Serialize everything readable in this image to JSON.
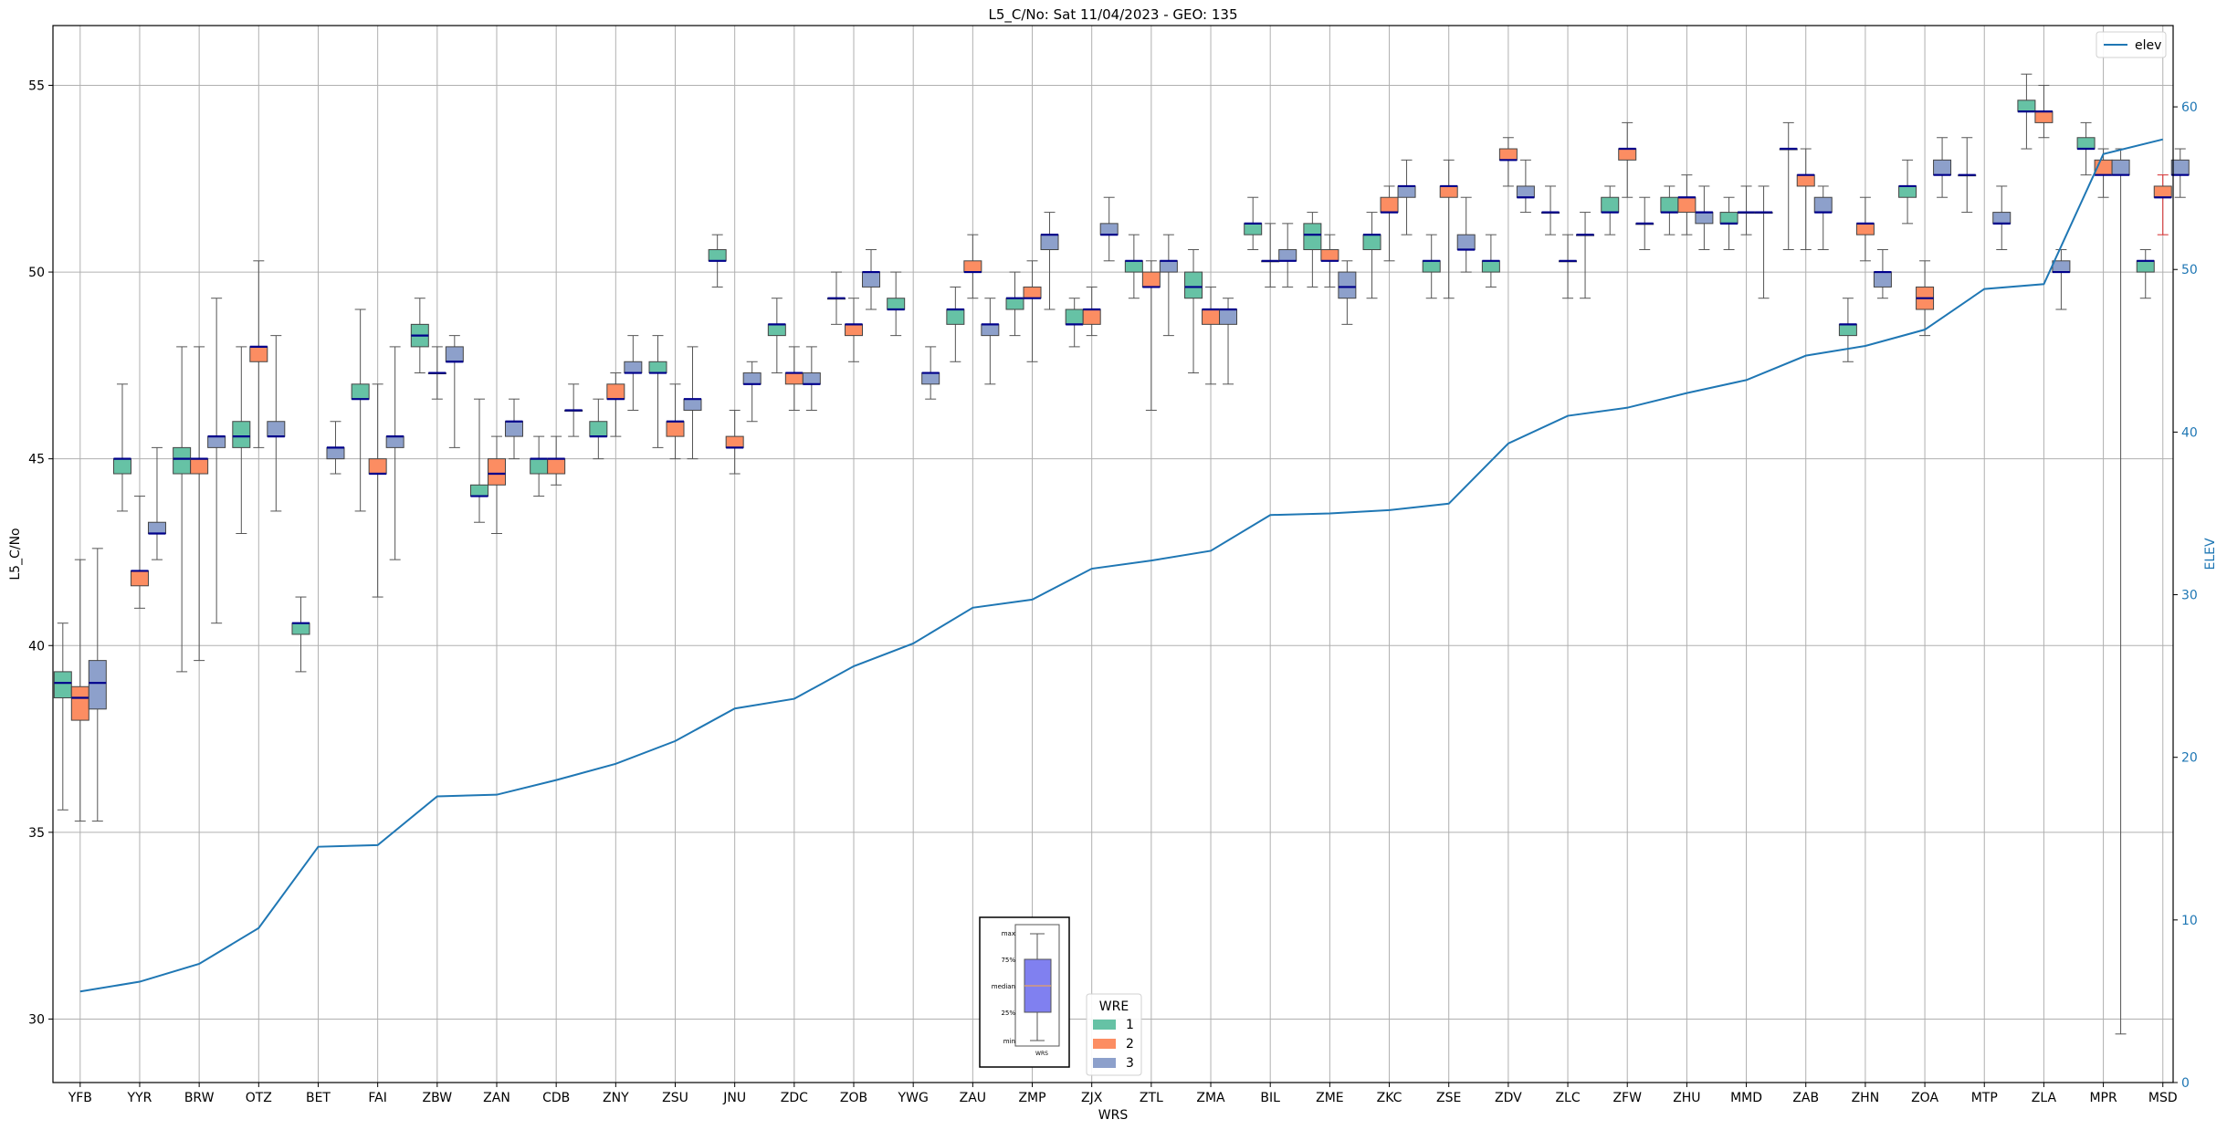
{
  "chart_data": {
    "type": "box",
    "title": "L5_C/No: Sat 11/04/2023 - GEO: 135",
    "xlabel": "WRS",
    "ylabel": "L5_C/No",
    "y2label": "ELEV",
    "ylim": [
      28.3,
      56.6
    ],
    "y2lim": [
      0,
      65
    ],
    "yticks": [
      30,
      35,
      40,
      45,
      50,
      55
    ],
    "y2ticks": [
      0,
      10,
      20,
      30,
      40,
      50,
      60
    ],
    "grid": true,
    "legend_wre": {
      "title": "WRE",
      "placement": "bottom-center",
      "entries": [
        "1",
        "2",
        "3"
      ]
    },
    "legend_elev": {
      "label": "elev",
      "placement": "top-right"
    },
    "key_box": {
      "labels": [
        "max",
        "75%",
        "median",
        "25%",
        "min"
      ],
      "xlabel": "WRS"
    },
    "colors": {
      "wre1": "#66c2a5",
      "wre2": "#fc8d62",
      "wre3": "#8da0cb",
      "median": "#00008b",
      "elev": "#1f77b4",
      "whisker": "#555555",
      "grid": "#b0b0b0",
      "outlier_whisker": "#d62728"
    },
    "categories": [
      "YFB",
      "YYR",
      "BRW",
      "OTZ",
      "BET",
      "FAI",
      "ZBW",
      "ZAN",
      "CDB",
      "ZNY",
      "ZSU",
      "JNU",
      "ZDC",
      "ZOB",
      "YWG",
      "ZAU",
      "ZMP",
      "ZJX",
      "ZTL",
      "ZMA",
      "BIL",
      "ZME",
      "ZKC",
      "ZSE",
      "ZDV",
      "ZLC",
      "ZFW",
      "ZHU",
      "MMD",
      "ZAB",
      "ZHN",
      "ZOA",
      "MTP",
      "ZLA",
      "MPR",
      "MSD"
    ],
    "elev": [
      5.6,
      6.2,
      7.3,
      9.5,
      14.5,
      14.6,
      17.6,
      17.7,
      18.6,
      19.6,
      21.0,
      23.0,
      23.6,
      25.6,
      27.0,
      29.2,
      29.7,
      31.6,
      32.1,
      32.7,
      34.9,
      35.0,
      35.2,
      35.6,
      39.3,
      41.0,
      41.5,
      42.4,
      43.2,
      44.7,
      45.3,
      46.3,
      48.8,
      49.1,
      57.1,
      58.0
    ],
    "boxes": [
      {
        "c": "YFB",
        "wre": 1,
        "min": 35.6,
        "q1": 38.6,
        "med": 39.0,
        "q3": 39.3,
        "max": 40.6
      },
      {
        "c": "YFB",
        "wre": 2,
        "min": 35.3,
        "q1": 38.0,
        "med": 38.6,
        "q3": 38.9,
        "max": 42.3
      },
      {
        "c": "YFB",
        "wre": 3,
        "min": 35.3,
        "q1": 38.3,
        "med": 39.0,
        "q3": 39.6,
        "max": 42.6
      },
      {
        "c": "YYR",
        "wre": 1,
        "min": 43.6,
        "q1": 44.6,
        "med": 45.0,
        "q3": 45.0,
        "max": 47.0
      },
      {
        "c": "YYR",
        "wre": 2,
        "min": 41.0,
        "q1": 41.6,
        "med": 42.0,
        "q3": 42.0,
        "max": 44.0
      },
      {
        "c": "YYR",
        "wre": 3,
        "min": 42.3,
        "q1": 43.0,
        "med": 43.0,
        "q3": 43.3,
        "max": 45.3
      },
      {
        "c": "BRW",
        "wre": 1,
        "min": 39.3,
        "q1": 44.6,
        "med": 45.0,
        "q3": 45.3,
        "max": 48.0
      },
      {
        "c": "BRW",
        "wre": 2,
        "min": 39.6,
        "q1": 44.6,
        "med": 45.0,
        "q3": 45.0,
        "max": 48.0
      },
      {
        "c": "BRW",
        "wre": 3,
        "min": 40.6,
        "q1": 45.3,
        "med": 45.6,
        "q3": 45.6,
        "max": 49.3
      },
      {
        "c": "OTZ",
        "wre": 1,
        "min": 43.0,
        "q1": 45.3,
        "med": 45.6,
        "q3": 46.0,
        "max": 48.0
      },
      {
        "c": "OTZ",
        "wre": 2,
        "min": 45.3,
        "q1": 47.6,
        "med": 48.0,
        "q3": 48.0,
        "max": 50.3
      },
      {
        "c": "OTZ",
        "wre": 3,
        "min": 43.6,
        "q1": 45.6,
        "med": 45.6,
        "q3": 46.0,
        "max": 48.3
      },
      {
        "c": "BET",
        "wre": 1,
        "min": 39.3,
        "q1": 40.3,
        "med": 40.6,
        "q3": 40.6,
        "max": 41.3
      },
      {
        "c": "BET",
        "wre": 3,
        "min": 44.6,
        "q1": 45.0,
        "med": 45.3,
        "q3": 45.3,
        "max": 46.0
      },
      {
        "c": "FAI",
        "wre": 1,
        "min": 43.6,
        "q1": 46.6,
        "med": 46.6,
        "q3": 47.0,
        "max": 49.0
      },
      {
        "c": "FAI",
        "wre": 2,
        "min": 41.3,
        "q1": 44.6,
        "med": 44.6,
        "q3": 45.0,
        "max": 47.0
      },
      {
        "c": "FAI",
        "wre": 3,
        "min": 42.3,
        "q1": 45.3,
        "med": 45.6,
        "q3": 45.6,
        "max": 48.0
      },
      {
        "c": "ZBW",
        "wre": 1,
        "min": 47.3,
        "q1": 48.0,
        "med": 48.3,
        "q3": 48.6,
        "max": 49.3
      },
      {
        "c": "ZBW",
        "wre": 2,
        "min": 46.6,
        "q1": 47.3,
        "med": 47.3,
        "q3": 47.3,
        "max": 48.0
      },
      {
        "c": "ZBW",
        "wre": 3,
        "min": 45.3,
        "q1": 47.6,
        "med": 47.6,
        "q3": 48.0,
        "max": 48.3
      },
      {
        "c": "ZAN",
        "wre": 1,
        "min": 43.3,
        "q1": 44.0,
        "med": 44.0,
        "q3": 44.3,
        "max": 46.6
      },
      {
        "c": "ZAN",
        "wre": 2,
        "min": 43.0,
        "q1": 44.3,
        "med": 44.6,
        "q3": 45.0,
        "max": 45.6
      },
      {
        "c": "ZAN",
        "wre": 3,
        "min": 45.0,
        "q1": 45.6,
        "med": 46.0,
        "q3": 46.0,
        "max": 46.6
      },
      {
        "c": "CDB",
        "wre": 1,
        "min": 44.0,
        "q1": 44.6,
        "med": 45.0,
        "q3": 45.0,
        "max": 45.6
      },
      {
        "c": "CDB",
        "wre": 2,
        "min": 44.3,
        "q1": 44.6,
        "med": 45.0,
        "q3": 45.0,
        "max": 45.6
      },
      {
        "c": "CDB",
        "wre": 3,
        "min": 45.6,
        "q1": 46.3,
        "med": 46.3,
        "q3": 46.3,
        "max": 47.0
      },
      {
        "c": "ZNY",
        "wre": 1,
        "min": 45.0,
        "q1": 45.6,
        "med": 45.6,
        "q3": 46.0,
        "max": 46.6
      },
      {
        "c": "ZNY",
        "wre": 2,
        "min": 45.6,
        "q1": 46.6,
        "med": 46.6,
        "q3": 47.0,
        "max": 47.3
      },
      {
        "c": "ZNY",
        "wre": 3,
        "min": 46.3,
        "q1": 47.3,
        "med": 47.3,
        "q3": 47.6,
        "max": 48.3
      },
      {
        "c": "ZSU",
        "wre": 1,
        "min": 45.3,
        "q1": 47.3,
        "med": 47.3,
        "q3": 47.6,
        "max": 48.3
      },
      {
        "c": "ZSU",
        "wre": 2,
        "min": 45.0,
        "q1": 45.6,
        "med": 46.0,
        "q3": 46.0,
        "max": 47.0
      },
      {
        "c": "ZSU",
        "wre": 3,
        "min": 45.0,
        "q1": 46.3,
        "med": 46.6,
        "q3": 46.6,
        "max": 48.0
      },
      {
        "c": "JNU",
        "wre": 1,
        "min": 49.6,
        "q1": 50.3,
        "med": 50.3,
        "q3": 50.6,
        "max": 51.0
      },
      {
        "c": "JNU",
        "wre": 2,
        "min": 44.6,
        "q1": 45.3,
        "med": 45.3,
        "q3": 45.6,
        "max": 46.3
      },
      {
        "c": "JNU",
        "wre": 3,
        "min": 46.0,
        "q1": 47.0,
        "med": 47.0,
        "q3": 47.3,
        "max": 47.6
      },
      {
        "c": "ZDC",
        "wre": 1,
        "min": 47.3,
        "q1": 48.3,
        "med": 48.6,
        "q3": 48.6,
        "max": 49.3
      },
      {
        "c": "ZDC",
        "wre": 2,
        "min": 46.3,
        "q1": 47.0,
        "med": 47.3,
        "q3": 47.3,
        "max": 48.0
      },
      {
        "c": "ZDC",
        "wre": 3,
        "min": 46.3,
        "q1": 47.0,
        "med": 47.0,
        "q3": 47.3,
        "max": 48.0
      },
      {
        "c": "ZOB",
        "wre": 1,
        "min": 48.6,
        "q1": 49.3,
        "med": 49.3,
        "q3": 49.3,
        "max": 50.0
      },
      {
        "c": "ZOB",
        "wre": 2,
        "min": 47.6,
        "q1": 48.3,
        "med": 48.6,
        "q3": 48.6,
        "max": 49.3
      },
      {
        "c": "ZOB",
        "wre": 3,
        "min": 49.0,
        "q1": 49.6,
        "med": 50.0,
        "q3": 50.0,
        "max": 50.6
      },
      {
        "c": "YWG",
        "wre": 1,
        "min": 48.3,
        "q1": 49.0,
        "med": 49.0,
        "q3": 49.3,
        "max": 50.0
      },
      {
        "c": "YWG",
        "wre": 3,
        "min": 46.6,
        "q1": 47.0,
        "med": 47.3,
        "q3": 47.3,
        "max": 48.0
      },
      {
        "c": "ZAU",
        "wre": 1,
        "min": 47.6,
        "q1": 48.6,
        "med": 49.0,
        "q3": 49.0,
        "max": 49.6
      },
      {
        "c": "ZAU",
        "wre": 2,
        "min": 49.3,
        "q1": 50.0,
        "med": 50.0,
        "q3": 50.3,
        "max": 51.0
      },
      {
        "c": "ZAU",
        "wre": 3,
        "min": 47.0,
        "q1": 48.3,
        "med": 48.6,
        "q3": 48.6,
        "max": 49.3
      },
      {
        "c": "ZMP",
        "wre": 1,
        "min": 48.3,
        "q1": 49.0,
        "med": 49.3,
        "q3": 49.3,
        "max": 50.0
      },
      {
        "c": "ZMP",
        "wre": 2,
        "min": 47.6,
        "q1": 49.3,
        "med": 49.3,
        "q3": 49.6,
        "max": 50.3
      },
      {
        "c": "ZMP",
        "wre": 3,
        "min": 49.0,
        "q1": 50.6,
        "med": 51.0,
        "q3": 51.0,
        "max": 51.6
      },
      {
        "c": "ZJX",
        "wre": 1,
        "min": 48.0,
        "q1": 48.6,
        "med": 48.6,
        "q3": 49.0,
        "max": 49.3
      },
      {
        "c": "ZJX",
        "wre": 2,
        "min": 48.3,
        "q1": 48.6,
        "med": 49.0,
        "q3": 49.0,
        "max": 49.6
      },
      {
        "c": "ZJX",
        "wre": 3,
        "min": 50.3,
        "q1": 51.0,
        "med": 51.0,
        "q3": 51.3,
        "max": 52.0
      },
      {
        "c": "ZTL",
        "wre": 1,
        "min": 49.3,
        "q1": 50.0,
        "med": 50.3,
        "q3": 50.3,
        "max": 51.0
      },
      {
        "c": "ZTL",
        "wre": 2,
        "min": 46.3,
        "q1": 49.6,
        "med": 49.6,
        "q3": 50.0,
        "max": 50.3
      },
      {
        "c": "ZTL",
        "wre": 3,
        "min": 48.3,
        "q1": 50.0,
        "med": 50.3,
        "q3": 50.3,
        "max": 51.0
      },
      {
        "c": "ZMA",
        "wre": 1,
        "min": 47.3,
        "q1": 49.3,
        "med": 49.6,
        "q3": 50.0,
        "max": 50.6
      },
      {
        "c": "ZMA",
        "wre": 2,
        "min": 47.0,
        "q1": 48.6,
        "med": 49.0,
        "q3": 49.0,
        "max": 49.6
      },
      {
        "c": "ZMA",
        "wre": 3,
        "min": 47.0,
        "q1": 48.6,
        "med": 49.0,
        "q3": 49.0,
        "max": 49.3
      },
      {
        "c": "BIL",
        "wre": 1,
        "min": 50.6,
        "q1": 51.0,
        "med": 51.3,
        "q3": 51.3,
        "max": 52.0
      },
      {
        "c": "BIL",
        "wre": 2,
        "min": 49.6,
        "q1": 50.3,
        "med": 50.3,
        "q3": 50.3,
        "max": 51.3
      },
      {
        "c": "BIL",
        "wre": 3,
        "min": 49.6,
        "q1": 50.3,
        "med": 50.3,
        "q3": 50.6,
        "max": 51.3
      },
      {
        "c": "ZME",
        "wre": 1,
        "min": 49.6,
        "q1": 50.6,
        "med": 51.0,
        "q3": 51.3,
        "max": 51.6
      },
      {
        "c": "ZME",
        "wre": 2,
        "min": 49.6,
        "q1": 50.3,
        "med": 50.3,
        "q3": 50.6,
        "max": 51.0
      },
      {
        "c": "ZME",
        "wre": 3,
        "min": 48.6,
        "q1": 49.3,
        "med": 49.6,
        "q3": 50.0,
        "max": 50.3
      },
      {
        "c": "ZKC",
        "wre": 1,
        "min": 49.3,
        "q1": 50.6,
        "med": 51.0,
        "q3": 51.0,
        "max": 51.6
      },
      {
        "c": "ZKC",
        "wre": 2,
        "min": 50.3,
        "q1": 51.6,
        "med": 51.6,
        "q3": 52.0,
        "max": 52.3
      },
      {
        "c": "ZKC",
        "wre": 3,
        "min": 51.0,
        "q1": 52.0,
        "med": 52.3,
        "q3": 52.3,
        "max": 53.0
      },
      {
        "c": "ZSE",
        "wre": 1,
        "min": 49.3,
        "q1": 50.0,
        "med": 50.3,
        "q3": 50.3,
        "max": 51.0
      },
      {
        "c": "ZSE",
        "wre": 2,
        "min": 49.3,
        "q1": 52.0,
        "med": 52.3,
        "q3": 52.3,
        "max": 53.0
      },
      {
        "c": "ZSE",
        "wre": 3,
        "min": 50.0,
        "q1": 50.6,
        "med": 50.6,
        "q3": 51.0,
        "max": 52.0
      },
      {
        "c": "ZDV",
        "wre": 1,
        "min": 49.6,
        "q1": 50.0,
        "med": 50.3,
        "q3": 50.3,
        "max": 51.0
      },
      {
        "c": "ZDV",
        "wre": 2,
        "min": 52.3,
        "q1": 53.0,
        "med": 53.0,
        "q3": 53.3,
        "max": 53.6
      },
      {
        "c": "ZDV",
        "wre": 3,
        "min": 51.6,
        "q1": 52.0,
        "med": 52.0,
        "q3": 52.3,
        "max": 53.0
      },
      {
        "c": "ZLC",
        "wre": 1,
        "min": 51.0,
        "q1": 51.6,
        "med": 51.6,
        "q3": 51.6,
        "max": 52.3
      },
      {
        "c": "ZLC",
        "wre": 2,
        "min": 49.3,
        "q1": 50.3,
        "med": 50.3,
        "q3": 50.3,
        "max": 51.0
      },
      {
        "c": "ZLC",
        "wre": 3,
        "min": 49.3,
        "q1": 51.0,
        "med": 51.0,
        "q3": 51.0,
        "max": 51.6
      },
      {
        "c": "ZFW",
        "wre": 1,
        "min": 51.0,
        "q1": 51.6,
        "med": 51.6,
        "q3": 52.0,
        "max": 52.3
      },
      {
        "c": "ZFW",
        "wre": 2,
        "min": 52.0,
        "q1": 53.0,
        "med": 53.3,
        "q3": 53.3,
        "max": 54.0
      },
      {
        "c": "ZFW",
        "wre": 3,
        "min": 50.6,
        "q1": 51.3,
        "med": 51.3,
        "q3": 51.3,
        "max": 52.0
      },
      {
        "c": "ZHU",
        "wre": 1,
        "min": 51.0,
        "q1": 51.6,
        "med": 51.6,
        "q3": 52.0,
        "max": 52.3
      },
      {
        "c": "ZHU",
        "wre": 2,
        "min": 51.0,
        "q1": 51.6,
        "med": 52.0,
        "q3": 52.0,
        "max": 52.6
      },
      {
        "c": "ZHU",
        "wre": 3,
        "min": 50.6,
        "q1": 51.3,
        "med": 51.6,
        "q3": 51.6,
        "max": 52.3
      },
      {
        "c": "MMD",
        "wre": 1,
        "min": 50.6,
        "q1": 51.3,
        "med": 51.3,
        "q3": 51.6,
        "max": 52.0
      },
      {
        "c": "MMD",
        "wre": 2,
        "min": 51.0,
        "q1": 51.6,
        "med": 51.6,
        "q3": 51.6,
        "max": 52.3
      },
      {
        "c": "MMD",
        "wre": 3,
        "min": 49.3,
        "q1": 51.6,
        "med": 51.6,
        "q3": 51.6,
        "max": 52.3
      },
      {
        "c": "ZAB",
        "wre": 1,
        "min": 50.6,
        "q1": 53.3,
        "med": 53.3,
        "q3": 53.3,
        "max": 54.0
      },
      {
        "c": "ZAB",
        "wre": 2,
        "min": 50.6,
        "q1": 52.3,
        "med": 52.6,
        "q3": 52.6,
        "max": 53.3
      },
      {
        "c": "ZAB",
        "wre": 3,
        "min": 50.6,
        "q1": 51.6,
        "med": 51.6,
        "q3": 52.0,
        "max": 52.3
      },
      {
        "c": "ZHN",
        "wre": 1,
        "min": 47.6,
        "q1": 48.3,
        "med": 48.6,
        "q3": 48.6,
        "max": 49.3
      },
      {
        "c": "ZHN",
        "wre": 2,
        "min": 50.3,
        "q1": 51.0,
        "med": 51.3,
        "q3": 51.3,
        "max": 52.0
      },
      {
        "c": "ZHN",
        "wre": 3,
        "min": 49.3,
        "q1": 49.6,
        "med": 50.0,
        "q3": 50.0,
        "max": 50.6
      },
      {
        "c": "ZOA",
        "wre": 1,
        "min": 51.3,
        "q1": 52.0,
        "med": 52.3,
        "q3": 52.3,
        "max": 53.0
      },
      {
        "c": "ZOA",
        "wre": 2,
        "min": 48.3,
        "q1": 49.0,
        "med": 49.3,
        "q3": 49.6,
        "max": 50.3
      },
      {
        "c": "ZOA",
        "wre": 3,
        "min": 52.0,
        "q1": 52.6,
        "med": 52.6,
        "q3": 53.0,
        "max": 53.6
      },
      {
        "c": "MTP",
        "wre": 1,
        "min": 51.6,
        "q1": 52.6,
        "med": 52.6,
        "q3": 52.6,
        "max": 53.6
      },
      {
        "c": "MTP",
        "wre": 3,
        "min": 50.6,
        "q1": 51.3,
        "med": 51.3,
        "q3": 51.6,
        "max": 52.3
      },
      {
        "c": "ZLA",
        "wre": 1,
        "min": 53.3,
        "q1": 54.3,
        "med": 54.3,
        "q3": 54.6,
        "max": 55.3
      },
      {
        "c": "ZLA",
        "wre": 2,
        "min": 53.6,
        "q1": 54.0,
        "med": 54.3,
        "q3": 54.3,
        "max": 55.0
      },
      {
        "c": "ZLA",
        "wre": 3,
        "min": 49.0,
        "q1": 50.0,
        "med": 50.0,
        "q3": 50.3,
        "max": 50.6
      },
      {
        "c": "MPR",
        "wre": 1,
        "min": 52.6,
        "q1": 53.3,
        "med": 53.3,
        "q3": 53.6,
        "max": 54.0
      },
      {
        "c": "MPR",
        "wre": 2,
        "min": 52.0,
        "q1": 52.6,
        "med": 52.6,
        "q3": 53.0,
        "max": 53.3
      },
      {
        "c": "MPR",
        "wre": 3,
        "min": 29.6,
        "q1": 52.6,
        "med": 52.6,
        "q3": 53.0,
        "max": 53.3
      },
      {
        "c": "MSD",
        "wre": 1,
        "min": 49.3,
        "q1": 50.0,
        "med": 50.3,
        "q3": 50.3,
        "max": 50.6
      },
      {
        "c": "MSD",
        "wre": 2,
        "min": 51.0,
        "q1": 52.0,
        "med": 52.0,
        "q3": 52.3,
        "max": 52.6,
        "red": true
      },
      {
        "c": "MSD",
        "wre": 3,
        "min": 52.0,
        "q1": 52.6,
        "med": 52.6,
        "q3": 53.0,
        "max": 53.3
      }
    ]
  }
}
